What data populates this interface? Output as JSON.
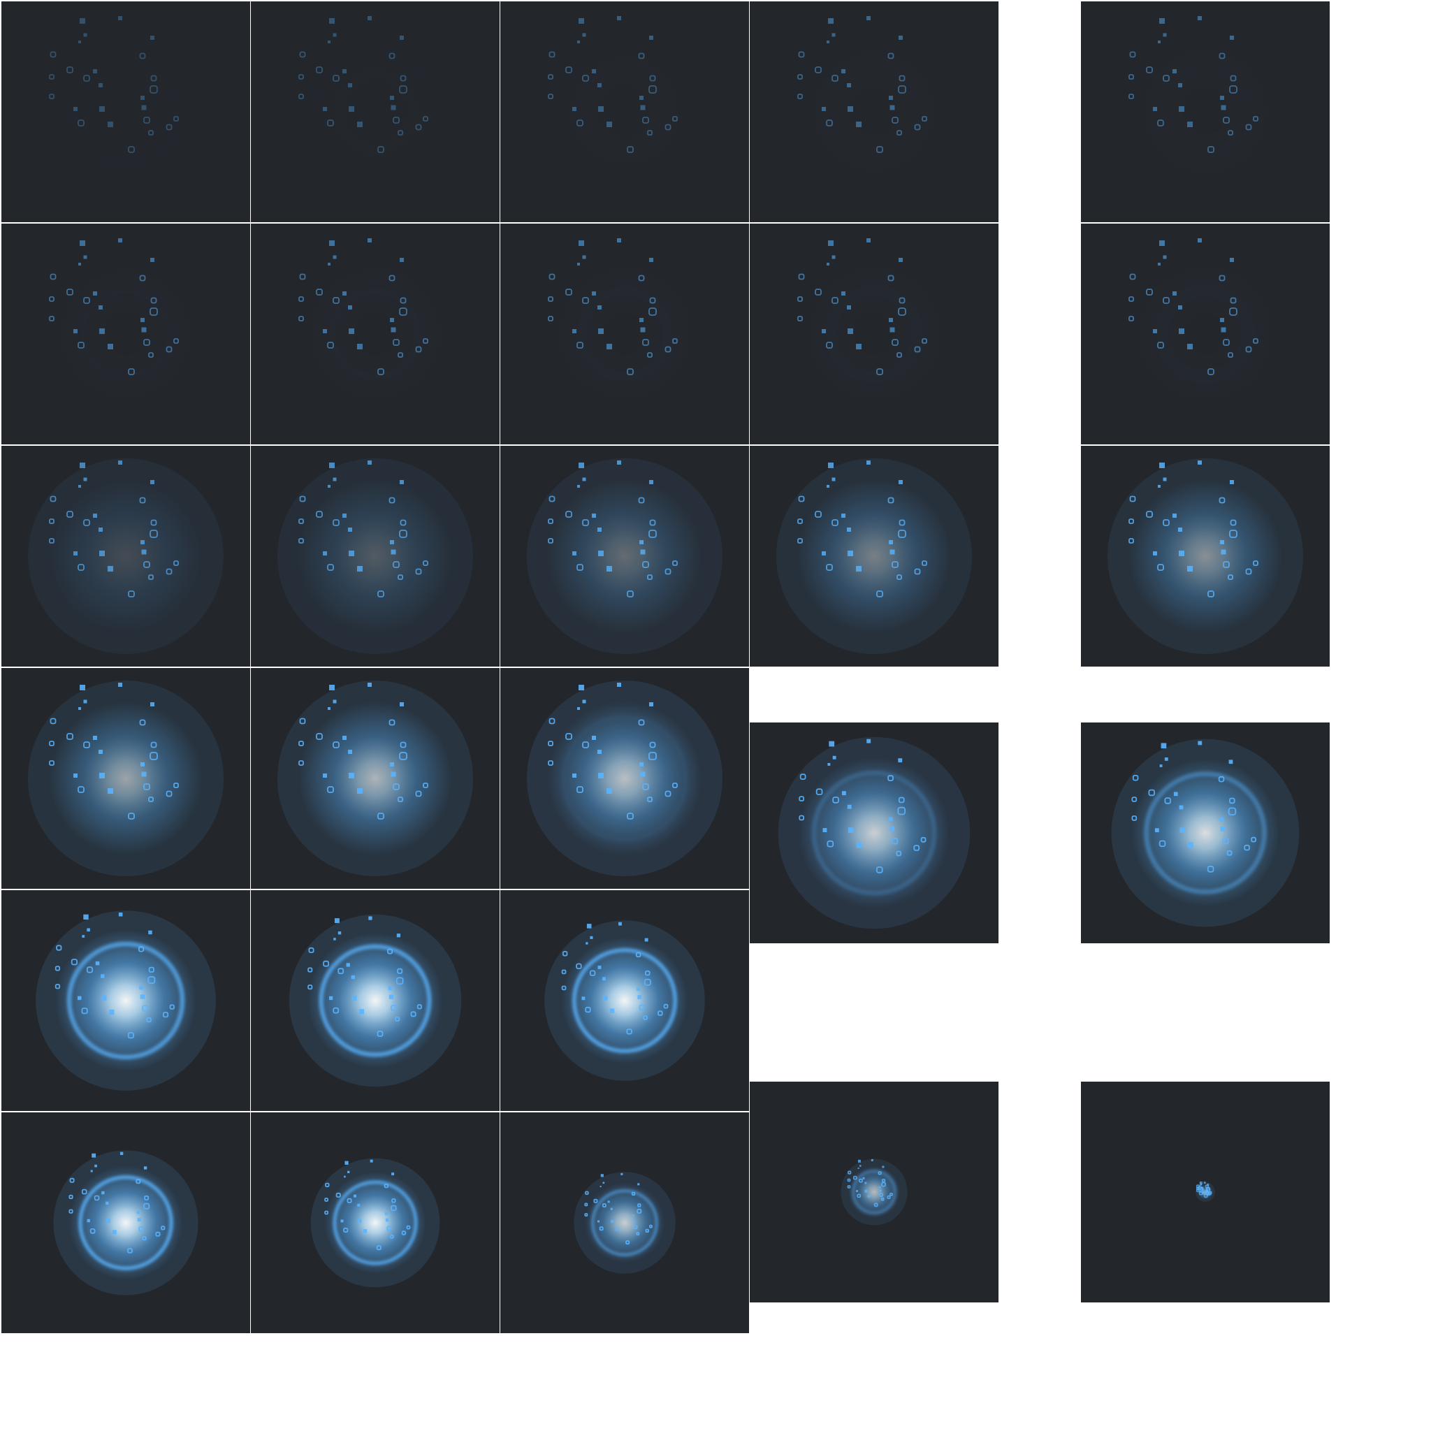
{
  "sprite_sheet": {
    "background_color": "#ffffff",
    "frame_color": "#23262b",
    "accent_color": "#5ab4ff",
    "frame_count": 28,
    "frames": [
      {
        "intensity": 0.1,
        "glow": 0.0,
        "ring": 0.0,
        "scale": 1.0
      },
      {
        "intensity": 0.14,
        "glow": 0.0,
        "ring": 0.0,
        "scale": 1.0
      },
      {
        "intensity": 0.2,
        "glow": 0.0,
        "ring": 0.0,
        "scale": 1.0
      },
      {
        "intensity": 0.27,
        "glow": 0.0,
        "ring": 0.0,
        "scale": 1.0
      },
      {
        "intensity": 0.3,
        "glow": 0.0,
        "ring": 0.0,
        "scale": 1.0
      },
      {
        "intensity": 0.36,
        "glow": 0.0,
        "ring": 0.0,
        "scale": 1.0
      },
      {
        "intensity": 0.38,
        "glow": 0.0,
        "ring": 0.0,
        "scale": 1.0
      },
      {
        "intensity": 0.4,
        "glow": 0.0,
        "ring": 0.0,
        "scale": 1.0
      },
      {
        "intensity": 0.42,
        "glow": 0.0,
        "ring": 0.0,
        "scale": 1.0
      },
      {
        "intensity": 0.44,
        "glow": 0.0,
        "ring": 0.0,
        "scale": 1.0
      },
      {
        "intensity": 0.55,
        "glow": 0.15,
        "ring": 0.0,
        "scale": 1.0
      },
      {
        "intensity": 0.6,
        "glow": 0.22,
        "ring": 0.0,
        "scale": 1.0
      },
      {
        "intensity": 0.65,
        "glow": 0.3,
        "ring": 0.0,
        "scale": 1.0
      },
      {
        "intensity": 0.7,
        "glow": 0.4,
        "ring": 0.0,
        "scale": 1.0
      },
      {
        "intensity": 0.75,
        "glow": 0.48,
        "ring": 0.0,
        "scale": 1.0
      },
      {
        "intensity": 0.78,
        "glow": 0.58,
        "ring": 0.0,
        "scale": 1.0
      },
      {
        "intensity": 0.8,
        "glow": 0.66,
        "ring": 0.0,
        "scale": 1.0
      },
      {
        "intensity": 0.82,
        "glow": 0.72,
        "ring": 0.05,
        "scale": 1.0
      },
      {
        "intensity": 0.85,
        "glow": 0.8,
        "ring": 0.25,
        "scale": 0.98
      },
      {
        "intensity": 0.88,
        "glow": 0.88,
        "ring": 0.5,
        "scale": 0.96
      },
      {
        "intensity": 0.9,
        "glow": 1.0,
        "ring": 0.85,
        "scale": 0.92
      },
      {
        "intensity": 0.9,
        "glow": 1.0,
        "ring": 0.9,
        "scale": 0.88
      },
      {
        "intensity": 0.9,
        "glow": 1.0,
        "ring": 0.95,
        "scale": 0.82
      },
      {
        "intensity": 0.9,
        "glow": 1.0,
        "ring": 1.0,
        "scale": 0.74
      },
      {
        "intensity": 0.9,
        "glow": 1.0,
        "ring": 1.0,
        "scale": 0.66
      },
      {
        "intensity": 0.8,
        "glow": 0.8,
        "ring": 0.8,
        "scale": 0.52
      },
      {
        "intensity": 0.7,
        "glow": 0.7,
        "ring": 0.7,
        "scale": 0.34
      },
      {
        "intensity": 0.6,
        "glow": 0.6,
        "ring": 0.0,
        "scale": 0.1
      }
    ]
  }
}
